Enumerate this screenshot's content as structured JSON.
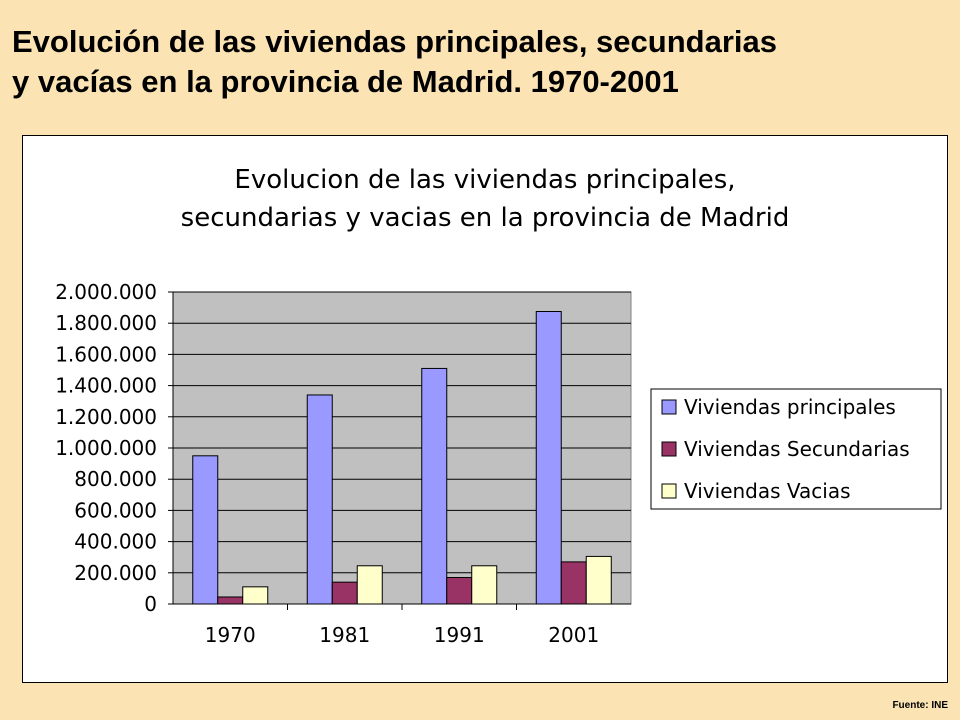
{
  "slide": {
    "title_line1": "Evolución de las viviendas principales, secundarias",
    "title_line2": "y vacías en la provincia de Madrid. 1970-2001",
    "source": "Fuente: INE"
  },
  "chart_data": {
    "type": "bar",
    "title_line1": "Evolucion de las viviendas principales,",
    "title_line2": "secundarias y vacias en la provincia de Madrid",
    "categories": [
      "1970",
      "1981",
      "1991",
      "2001"
    ],
    "series": [
      {
        "name": "Viviendas principales",
        "values": [
          950000,
          1340000,
          1510000,
          1875000
        ],
        "color": "#9999ff"
      },
      {
        "name": "Viviendas Secundarias",
        "values": [
          45000,
          140000,
          170000,
          270000
        ],
        "color": "#993366"
      },
      {
        "name": "Viviendas Vacias",
        "values": [
          110000,
          245000,
          245000,
          305000
        ],
        "color": "#ffffcc"
      }
    ],
    "ylim": [
      0,
      2000000
    ],
    "yticks": [
      0,
      200000,
      400000,
      600000,
      800000,
      1000000,
      1200000,
      1400000,
      1600000,
      1800000,
      2000000
    ],
    "ytick_labels": [
      "0",
      "200.000",
      "400.000",
      "600.000",
      "800.000",
      "1.000.000",
      "1.200.000",
      "1.400.000",
      "1.600.000",
      "1.800.000",
      "2.000.000"
    ],
    "grid": true,
    "plot_background": "#c0c0c0",
    "legend_position": "right"
  }
}
